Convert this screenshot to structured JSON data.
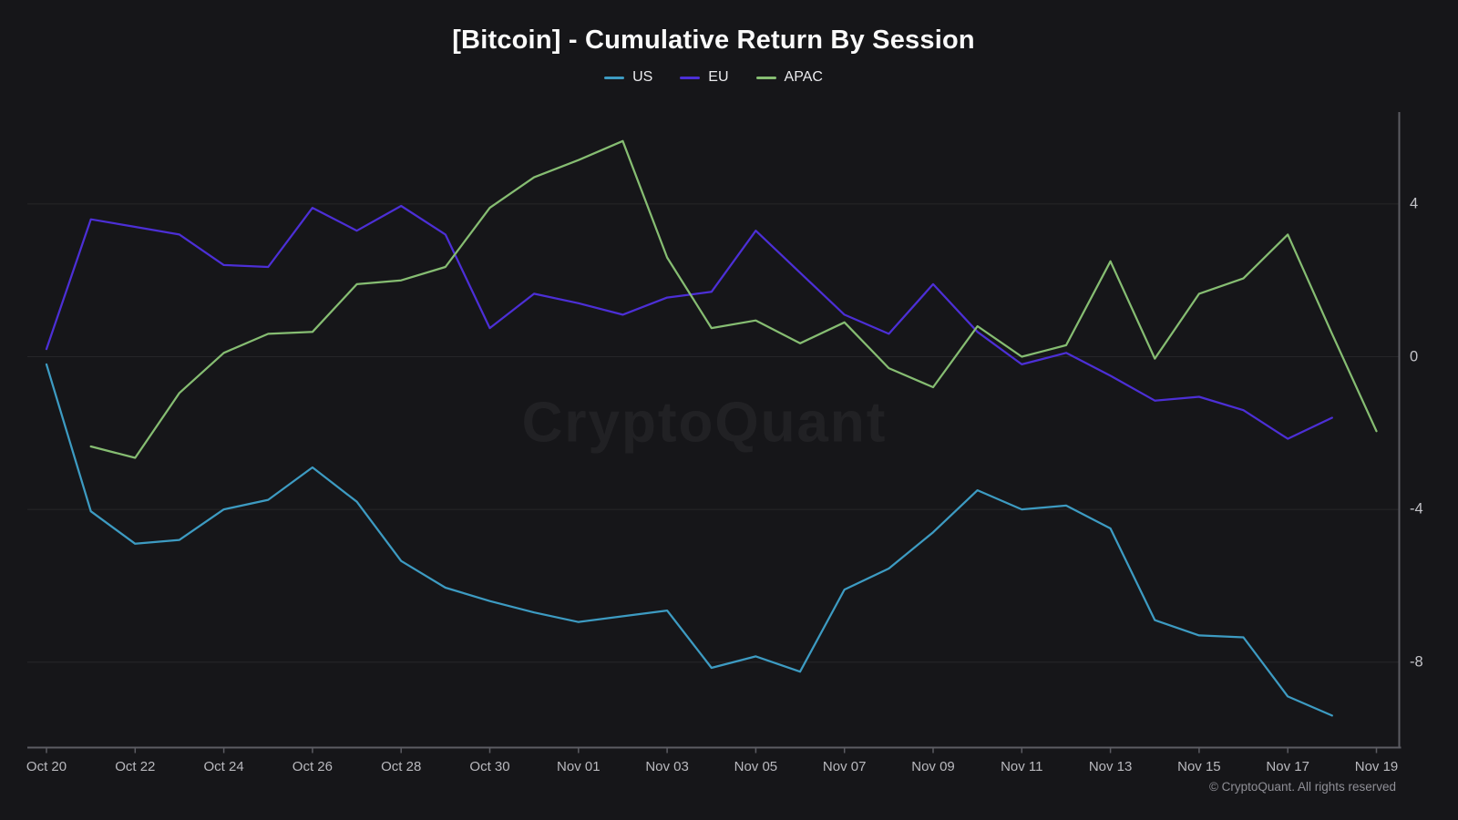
{
  "title": "[Bitcoin] - Cumulative Return By Session",
  "watermark_text": "CryptoQuant",
  "copyright_text": "© CryptoQuant. All rights reserved",
  "colors": {
    "background": "#161619",
    "grid": "rgba(255,255,255,0.07)",
    "axis": "#5c5c63",
    "tick_label": "#b9b9be",
    "title": "#fafafa",
    "us": "#3d9bc2",
    "eu": "#4c2fd6",
    "apac": "#86bd72"
  },
  "chart_data": {
    "type": "line",
    "title": "[Bitcoin] - Cumulative Return By Session",
    "xlabel": "",
    "ylabel": "",
    "legend_position": "top",
    "grid": "horizontal-only",
    "y_axis_side": "right",
    "y_ticks": [
      4,
      0,
      -4,
      -8
    ],
    "ylim": [
      -10.4,
      6.4
    ],
    "x": [
      "Oct 20",
      "Oct 21",
      "Oct 22",
      "Oct 23",
      "Oct 24",
      "Oct 25",
      "Oct 26",
      "Oct 27",
      "Oct 28",
      "Oct 29",
      "Oct 30",
      "Oct 31",
      "Nov 01",
      "Nov 02",
      "Nov 03",
      "Nov 04",
      "Nov 05",
      "Nov 06",
      "Nov 07",
      "Nov 08",
      "Nov 09",
      "Nov 10",
      "Nov 11",
      "Nov 12",
      "Nov 13",
      "Nov 14",
      "Nov 15",
      "Nov 16",
      "Nov 17",
      "Nov 18",
      "Nov 19"
    ],
    "x_tick_labels": [
      "Oct 20",
      "Oct 22",
      "Oct 24",
      "Oct 26",
      "Oct 28",
      "Oct 30",
      "Nov 01",
      "Nov 03",
      "Nov 05",
      "Nov 07",
      "Nov 09",
      "Nov 11",
      "Nov 13",
      "Nov 15",
      "Nov 17",
      "Nov 19"
    ],
    "series": [
      {
        "name": "US",
        "color": "#3d9bc2",
        "values": [
          -0.2,
          -4.05,
          -4.9,
          -4.8,
          -4.0,
          -3.75,
          -2.9,
          -3.8,
          -5.35,
          -6.05,
          -6.4,
          -6.7,
          -6.95,
          -6.8,
          -6.65,
          -8.15,
          -7.85,
          -8.25,
          -6.1,
          -5.55,
          -4.6,
          -3.5,
          -4.0,
          -3.9,
          -4.5,
          -6.9,
          -7.3,
          -7.35,
          -8.9,
          -9.4,
          null
        ]
      },
      {
        "name": "EU",
        "color": "#4c2fd6",
        "values": [
          0.2,
          3.6,
          3.4,
          3.2,
          2.4,
          2.35,
          3.9,
          3.3,
          3.95,
          3.2,
          0.75,
          1.65,
          1.4,
          1.1,
          1.55,
          1.7,
          3.3,
          2.2,
          1.1,
          0.6,
          1.9,
          0.65,
          -0.2,
          0.1,
          -0.5,
          -1.15,
          -1.05,
          -1.4,
          -2.15,
          -1.6,
          null
        ]
      },
      {
        "name": "APAC",
        "color": "#86bd72",
        "values": [
          null,
          -2.35,
          -2.65,
          -0.95,
          0.1,
          0.6,
          0.65,
          1.9,
          2.0,
          2.35,
          3.9,
          4.7,
          5.15,
          5.65,
          2.6,
          0.75,
          0.95,
          0.35,
          0.9,
          -0.3,
          -0.8,
          0.8,
          0.0,
          0.3,
          2.5,
          -0.05,
          1.65,
          2.05,
          3.2,
          0.6,
          -1.95
        ]
      }
    ]
  }
}
